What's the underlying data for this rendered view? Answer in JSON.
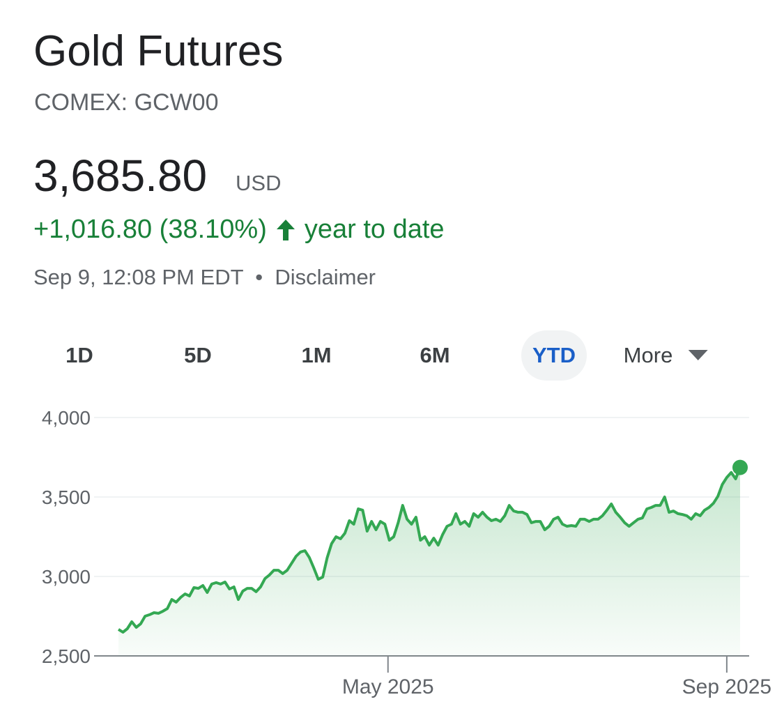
{
  "header": {
    "title": "Gold Futures",
    "subtitle": "COMEX: GCW00",
    "price": "3,685.80",
    "currency": "USD",
    "change": "+1,016.80 (38.10%)",
    "period": "year to date",
    "timestamp": "Sep 9, 12:08 PM EDT",
    "disclaimer": "Disclaimer"
  },
  "ranges": {
    "options": [
      "1D",
      "5D",
      "1M",
      "6M",
      "YTD",
      "More"
    ],
    "selected": "YTD"
  },
  "chart_data": {
    "type": "area",
    "color": "#34a853",
    "values": [
      2667,
      2649,
      2671,
      2715,
      2680,
      2702,
      2750,
      2759,
      2772,
      2768,
      2781,
      2798,
      2855,
      2838,
      2868,
      2890,
      2877,
      2930,
      2925,
      2943,
      2899,
      2952,
      2961,
      2952,
      2965,
      2921,
      2934,
      2855,
      2908,
      2925,
      2925,
      2904,
      2934,
      2987,
      3009,
      3039,
      3039,
      3018,
      3039,
      3083,
      3127,
      3154,
      3162,
      3118,
      3053,
      2982,
      2996,
      3118,
      3206,
      3250,
      3237,
      3272,
      3351,
      3329,
      3425,
      3417,
      3285,
      3346,
      3294,
      3346,
      3329,
      3228,
      3250,
      3338,
      3447,
      3360,
      3329,
      3373,
      3228,
      3250,
      3197,
      3241,
      3197,
      3263,
      3316,
      3329,
      3395,
      3329,
      3346,
      3316,
      3395,
      3373,
      3404,
      3373,
      3351,
      3360,
      3346,
      3382,
      3447,
      3412,
      3404,
      3404,
      3390,
      3338,
      3346,
      3346,
      3294,
      3316,
      3360,
      3373,
      3329,
      3316,
      3320,
      3316,
      3360,
      3360,
      3346,
      3360,
      3360,
      3382,
      3417,
      3456,
      3404,
      3373,
      3338,
      3316,
      3338,
      3360,
      3368,
      3425,
      3434,
      3447,
      3447,
      3500,
      3404,
      3412,
      3395,
      3390,
      3382,
      3360,
      3395,
      3382,
      3417,
      3434,
      3461,
      3504,
      3579,
      3623,
      3654,
      3614,
      3685.8
    ],
    "xlim": [
      0,
      140
    ],
    "xticks": [
      {
        "value": 60.7,
        "label": "May 2025"
      },
      {
        "value": 137,
        "label": "Sep 2025"
      }
    ],
    "ylim": [
      2500,
      4000
    ],
    "yticks": [
      {
        "value": 2500,
        "label": "2,500"
      },
      {
        "value": 3000,
        "label": "3,000"
      },
      {
        "value": 3500,
        "label": "3,500"
      },
      {
        "value": 4000,
        "label": "4,000"
      }
    ],
    "grid": true
  }
}
